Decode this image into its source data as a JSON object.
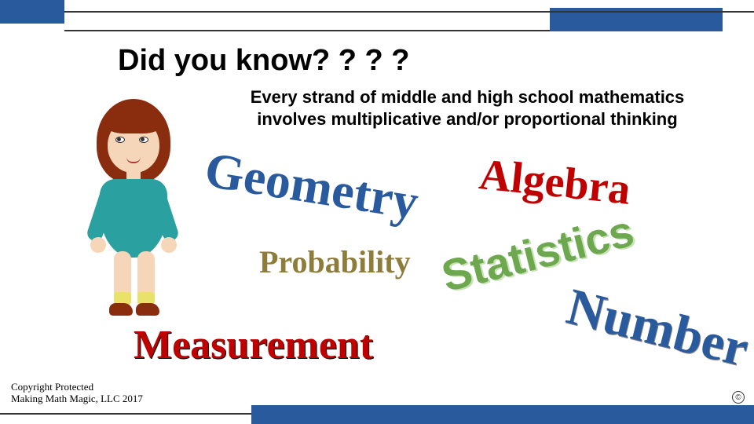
{
  "colors": {
    "blue": "#2a5a9e",
    "red": "#c00000",
    "green": "#6da84f",
    "olive": "#8e7d3a",
    "line": "#333333",
    "bg": "#ffffff"
  },
  "header": {
    "title": "Did you know? ? ? ?",
    "subtitle": "Every strand of middle and high school mathematics involves multiplicative and/or proportional thinking"
  },
  "strands": {
    "geometry": {
      "text": "Geometry",
      "color": "#2a5a9e",
      "fontsize": 64,
      "rotation_deg": 9,
      "font": "serif"
    },
    "algebra": {
      "text": "Algebra",
      "color": "#c00000",
      "fontsize": 56,
      "rotation_deg": 6,
      "font": "serif"
    },
    "probability": {
      "text": "Probability",
      "color": "#8e7d3a",
      "fontsize": 40,
      "rotation_deg": 0,
      "font": "serif"
    },
    "statistics": {
      "text": "Statistics",
      "color": "#6da84f",
      "fontsize": 56,
      "rotation_deg": -14,
      "font": "sans-serif"
    },
    "measurement": {
      "text": "Measurement",
      "color": "#c00000",
      "fontsize": 52,
      "rotation_deg": 0,
      "font": "serif"
    },
    "number": {
      "text": "Number",
      "color": "#2a5a9e",
      "fontsize": 66,
      "rotation_deg": 14,
      "font": "serif"
    }
  },
  "footer": {
    "copyright_line1": "Copyright Protected",
    "copyright_line2": "Making Math Magic, LLC 2017",
    "cc_symbol": "©"
  }
}
